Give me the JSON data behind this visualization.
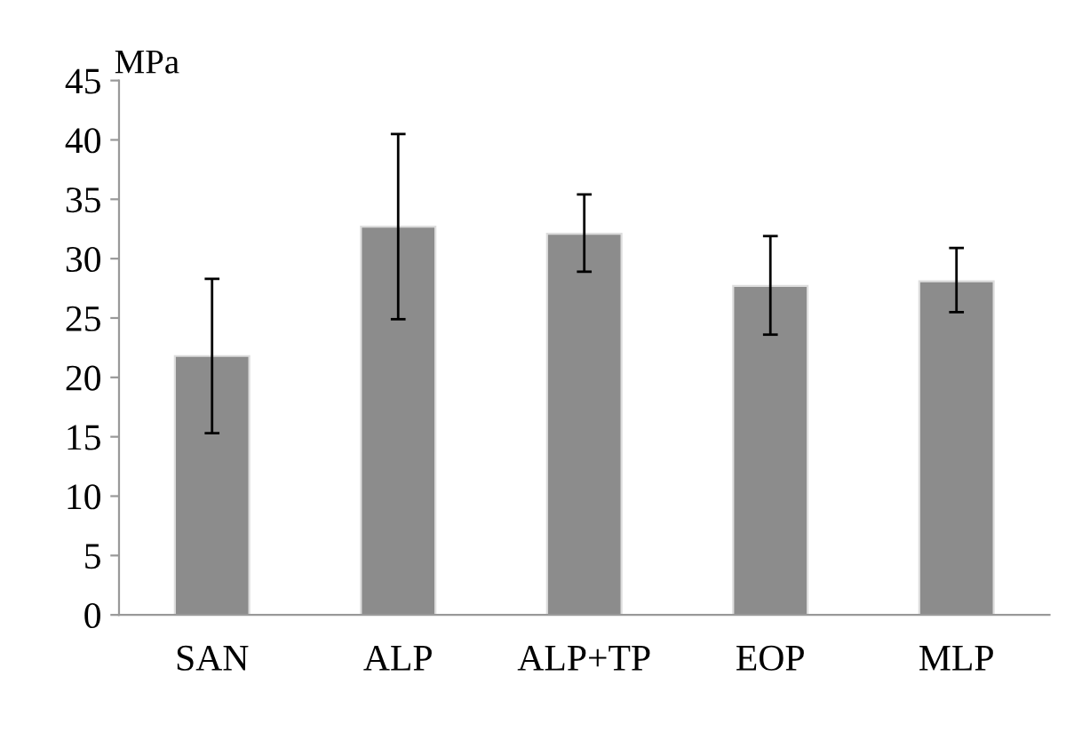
{
  "chart_data": {
    "type": "bar",
    "ylabel": "MPa",
    "categories": [
      "SAN",
      "ALP",
      "ALP+TP",
      "EOP",
      "MLP"
    ],
    "values": [
      21.8,
      32.7,
      32.1,
      27.7,
      28.1
    ],
    "errors": [
      [
        15.3,
        28.3
      ],
      [
        24.9,
        40.5
      ],
      [
        28.9,
        35.4
      ],
      [
        23.6,
        31.9
      ],
      [
        25.5,
        30.9
      ]
    ],
    "color": "#8c8c8c",
    "ylim": [
      0,
      45
    ],
    "yticks": [
      0,
      5,
      10,
      15,
      20,
      25,
      30,
      35,
      40,
      45
    ],
    "grid": false
  }
}
